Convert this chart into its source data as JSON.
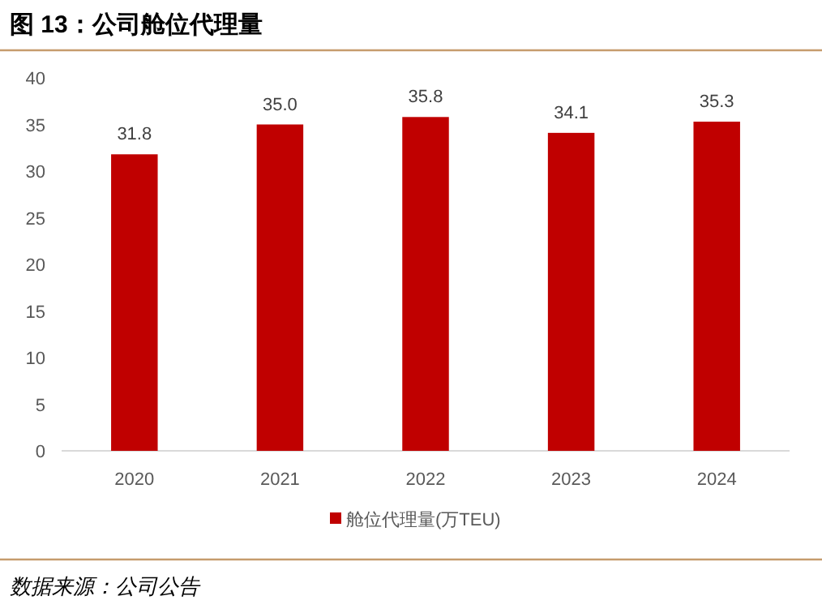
{
  "chart_data": {
    "type": "bar",
    "title": "图 13：公司舱位代理量",
    "categories": [
      "2020",
      "2021",
      "2022",
      "2023",
      "2024"
    ],
    "series": [
      {
        "name": "舱位代理量(万TEU)",
        "color": "#c00000",
        "values": [
          31.8,
          35.0,
          35.8,
          34.1,
          35.3
        ]
      }
    ],
    "value_labels": [
      "31.8",
      "35.0",
      "35.8",
      "34.1",
      "35.3"
    ],
    "ylim": [
      0,
      40
    ],
    "yticks": [
      0,
      5,
      10,
      15,
      20,
      25,
      30,
      35,
      40
    ],
    "legend": "bottom",
    "annotations": [
      "数据来源：公司公告"
    ]
  }
}
